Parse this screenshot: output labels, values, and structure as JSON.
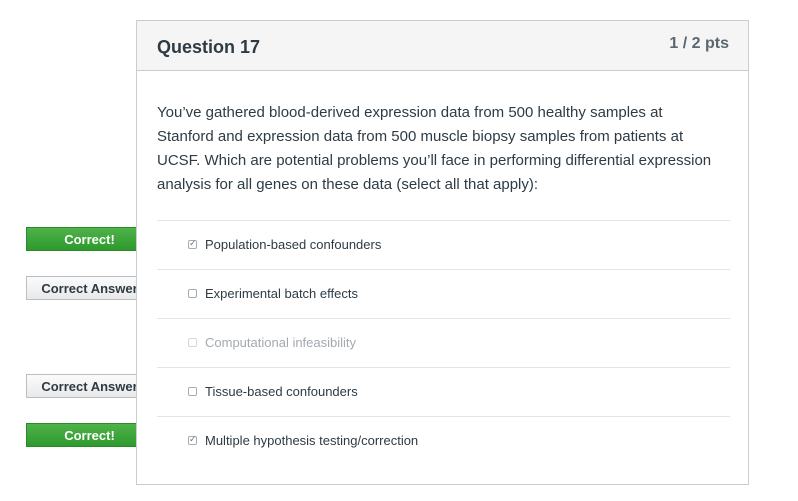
{
  "question": {
    "title": "Question 17",
    "points": "1 / 2 pts",
    "text": "You’ve gathered blood-derived expression data from 500 healthy samples at Stanford and expression data from 500 muscle biopsy samples from patients at UCSF. Which are potential problems you’ll face in performing differential expression analysis for all genes on these data (select all that apply):"
  },
  "answers": [
    {
      "label": "Population-based confounders",
      "checked": true,
      "disabled": false,
      "flag": "Correct!"
    },
    {
      "label": "Experimental batch effects",
      "checked": false,
      "disabled": false,
      "flag": "Correct Answer"
    },
    {
      "label": "Computational infeasibility",
      "checked": false,
      "disabled": true,
      "flag": ""
    },
    {
      "label": "Tissue-based confounders",
      "checked": false,
      "disabled": false,
      "flag": "Correct Answer"
    },
    {
      "label": "Multiple hypothesis testing/correction",
      "checked": true,
      "disabled": false,
      "flag": "Correct!"
    }
  ],
  "colors": {
    "correct_flag": "#36a034",
    "answer_flag": "#efefef",
    "header_bg": "#f5f5f5",
    "text": "#2d3b45"
  }
}
